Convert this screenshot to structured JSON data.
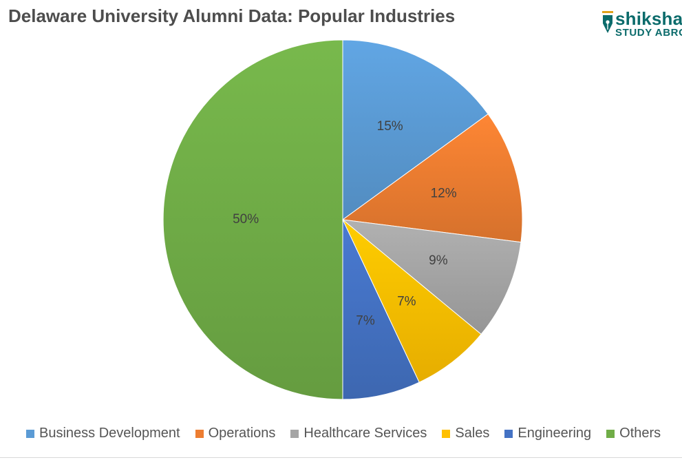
{
  "chart_data": {
    "type": "pie",
    "title": "Delaware University Alumni Data: Popular Industries",
    "legend_position": "bottom",
    "slices": [
      {
        "label": "Business Development",
        "value": 15,
        "value_label": "15%",
        "color": "#5b9bd5"
      },
      {
        "label": "Operations",
        "value": 12,
        "value_label": "12%",
        "color": "#ed7d31"
      },
      {
        "label": "Healthcare Services",
        "value": 9,
        "value_label": "9%",
        "color": "#a5a5a5"
      },
      {
        "label": "Sales",
        "value": 7,
        "value_label": "7%",
        "color": "#ffc000"
      },
      {
        "label": "Engineering",
        "value": 7,
        "value_label": "7%",
        "color": "#4472c4"
      },
      {
        "label": "Others",
        "value": 50,
        "value_label": "50%",
        "color": "#70ad47"
      }
    ]
  },
  "logo": {
    "wordmark": "shiksha",
    "tagline": "STUDY ABROAD",
    "icon": "pen-nib-icon",
    "color": "#0b6b6b"
  }
}
